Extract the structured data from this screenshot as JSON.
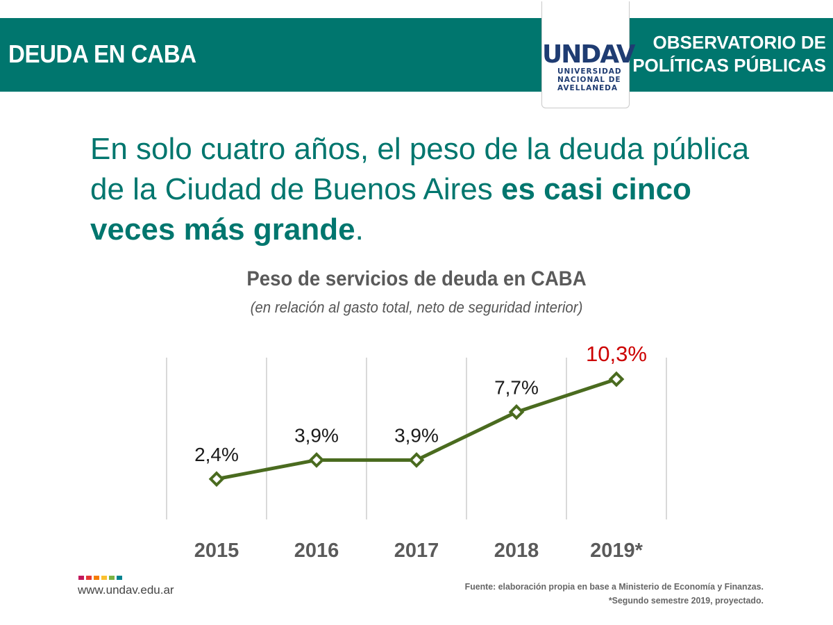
{
  "header": {
    "title": "DEUDA EN CABA",
    "right_line1": "OBSERVATORIO DE",
    "right_line2": "POLÍTICAS PÚBLICAS",
    "logo_text": "UNDAV",
    "logo_line1": "UNIVERSIDAD",
    "logo_line2": "NACIONAL DE",
    "logo_line3": "AVELLANEDA",
    "colors": {
      "banner": "#00766e",
      "logo": "#1f3c72"
    }
  },
  "headline": {
    "normal": "En solo cuatro años, el peso de la deuda pública de la Ciudad de Buenos Aires ",
    "bold": "es casi cinco veces más grande",
    "end": "."
  },
  "chart_data": {
    "type": "line",
    "title": "Peso de servicios de deuda en CABA",
    "subtitle": "(en relación al gasto total, neto de seguridad interior)",
    "categories": [
      "2015",
      "2016",
      "2017",
      "2018",
      "2019*"
    ],
    "values": [
      2.4,
      3.9,
      3.9,
      7.7,
      10.3
    ],
    "labels": [
      "2,4%",
      "3,9%",
      "3,9%",
      "7,7%",
      "10,3%"
    ],
    "highlight_index": 4,
    "ylim": [
      -0.8,
      10.3
    ],
    "grid": "vertical",
    "colors": {
      "line": "#4a6b1f",
      "label": "#1a1a1a",
      "highlight": "#cc0000",
      "grid": "#d9d9d9",
      "tick": "#5a5a5a"
    }
  },
  "footer": {
    "website": "www.undav.edu.ar",
    "source_line1": "Fuente: elaboración propia en base a Ministerio de Economía y Finanzas.",
    "source_line2": "*Segundo semestre 2019, proyectado.",
    "brand_colors": [
      "#c2185b",
      "#e53935",
      "#f57c00",
      "#fbc02d",
      "#7cb342",
      "#00838f"
    ]
  }
}
